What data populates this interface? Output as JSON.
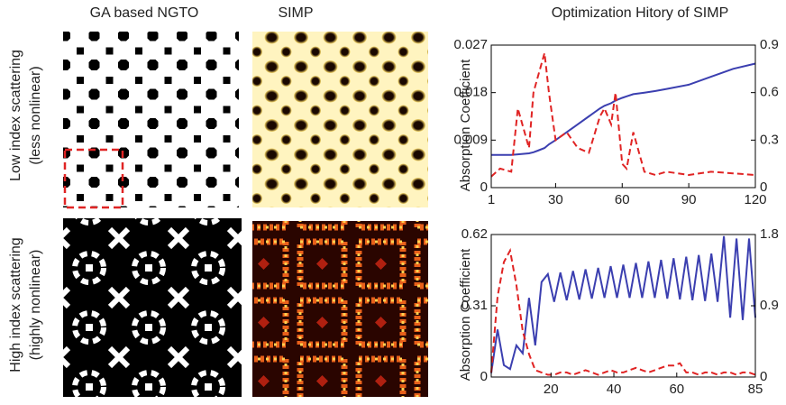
{
  "column_titles": [
    "GA based NGTO",
    "SIMP",
    "Optimization Hitory of SIMP"
  ],
  "row_labels": [
    [
      "Low index scattering",
      "(less nonlinear)"
    ],
    [
      "High index scattering",
      "(highly nonlinear)"
    ]
  ],
  "chart_data": [
    {
      "type": "line",
      "ylabel": "Absorption Coefficient",
      "x": [
        1,
        5,
        10,
        13,
        18,
        20,
        22,
        25,
        27,
        30,
        35,
        40,
        45,
        50,
        52,
        55,
        57,
        60,
        62,
        65,
        70,
        75,
        80,
        90,
        100,
        110,
        120
      ],
      "xlim": [
        1,
        120
      ],
      "xticks": [
        1,
        30,
        60,
        90,
        120
      ],
      "ylim": [
        0,
        0.027
      ],
      "yticks": [
        0,
        0.009,
        0.018,
        0.027
      ],
      "y2lim": [
        0,
        0.9
      ],
      "y2ticks": [
        0,
        0.3,
        0.6,
        0.9
      ],
      "series": [
        {
          "color": "#3b3fb0",
          "dash": false,
          "values": [
            0.0062,
            0.0062,
            0.0062,
            0.0063,
            0.0065,
            0.0067,
            0.007,
            0.0075,
            0.0082,
            0.009,
            0.0105,
            0.012,
            0.0135,
            0.015,
            0.0155,
            0.016,
            0.0165,
            0.017,
            0.0173,
            0.0177,
            0.018,
            0.0183,
            0.0187,
            0.0195,
            0.021,
            0.0225,
            0.0235
          ]
        },
        {
          "color": "#e02424",
          "dash": true,
          "axis": "y2",
          "values": [
            0.07,
            0.12,
            0.1,
            0.5,
            0.25,
            0.6,
            0.7,
            0.85,
            0.6,
            0.3,
            0.35,
            0.25,
            0.22,
            0.45,
            0.5,
            0.4,
            0.6,
            0.15,
            0.12,
            0.35,
            0.1,
            0.08,
            0.1,
            0.08,
            0.1,
            0.09,
            0.08
          ]
        }
      ]
    },
    {
      "type": "line",
      "ylabel": "Absorption Coefficient",
      "x": [
        1,
        3,
        5,
        7,
        9,
        11,
        13,
        15,
        17,
        19,
        21,
        23,
        25,
        27,
        29,
        31,
        33,
        35,
        37,
        39,
        41,
        43,
        45,
        47,
        49,
        51,
        53,
        55,
        57,
        59,
        61,
        63,
        65,
        67,
        69,
        71,
        73,
        75,
        77,
        79,
        81,
        83,
        85
      ],
      "xlim": [
        1,
        85
      ],
      "xticks": [
        20,
        40,
        60,
        85
      ],
      "ylim": [
        0,
        0.62
      ],
      "yticks": [
        0,
        0.31,
        0.62
      ],
      "y2lim": [
        0,
        1.8
      ],
      "y2ticks": [
        0,
        0.9,
        1.8
      ],
      "series": [
        {
          "color": "#3b3fb0",
          "dash": false,
          "axis": "y2",
          "values": [
            0.05,
            0.6,
            0.15,
            0.1,
            0.4,
            0.3,
            1.0,
            0.4,
            1.2,
            1.3,
            0.95,
            1.32,
            0.97,
            1.34,
            0.98,
            1.36,
            0.99,
            1.38,
            1.0,
            1.4,
            1.0,
            1.42,
            1.0,
            1.44,
            1.0,
            1.46,
            1.0,
            1.48,
            0.99,
            1.5,
            0.98,
            1.52,
            0.97,
            1.54,
            0.96,
            1.56,
            0.95,
            1.78,
            0.75,
            1.75,
            0.72,
            1.75,
            0.75
          ]
        },
        {
          "color": "#e02424",
          "dash": true,
          "values": [
            0.02,
            0.35,
            0.5,
            0.55,
            0.4,
            0.2,
            0.1,
            0.03,
            0.02,
            0.01,
            0.01,
            0.02,
            0.02,
            0.01,
            0.02,
            0.03,
            0.02,
            0.01,
            0.02,
            0.03,
            0.02,
            0.02,
            0.03,
            0.04,
            0.03,
            0.02,
            0.03,
            0.04,
            0.05,
            0.05,
            0.06,
            0.02,
            0.02,
            0.01,
            0.02,
            0.02,
            0.01,
            0.02,
            0.02,
            0.01,
            0.02,
            0.02,
            0.01
          ]
        }
      ]
    }
  ]
}
